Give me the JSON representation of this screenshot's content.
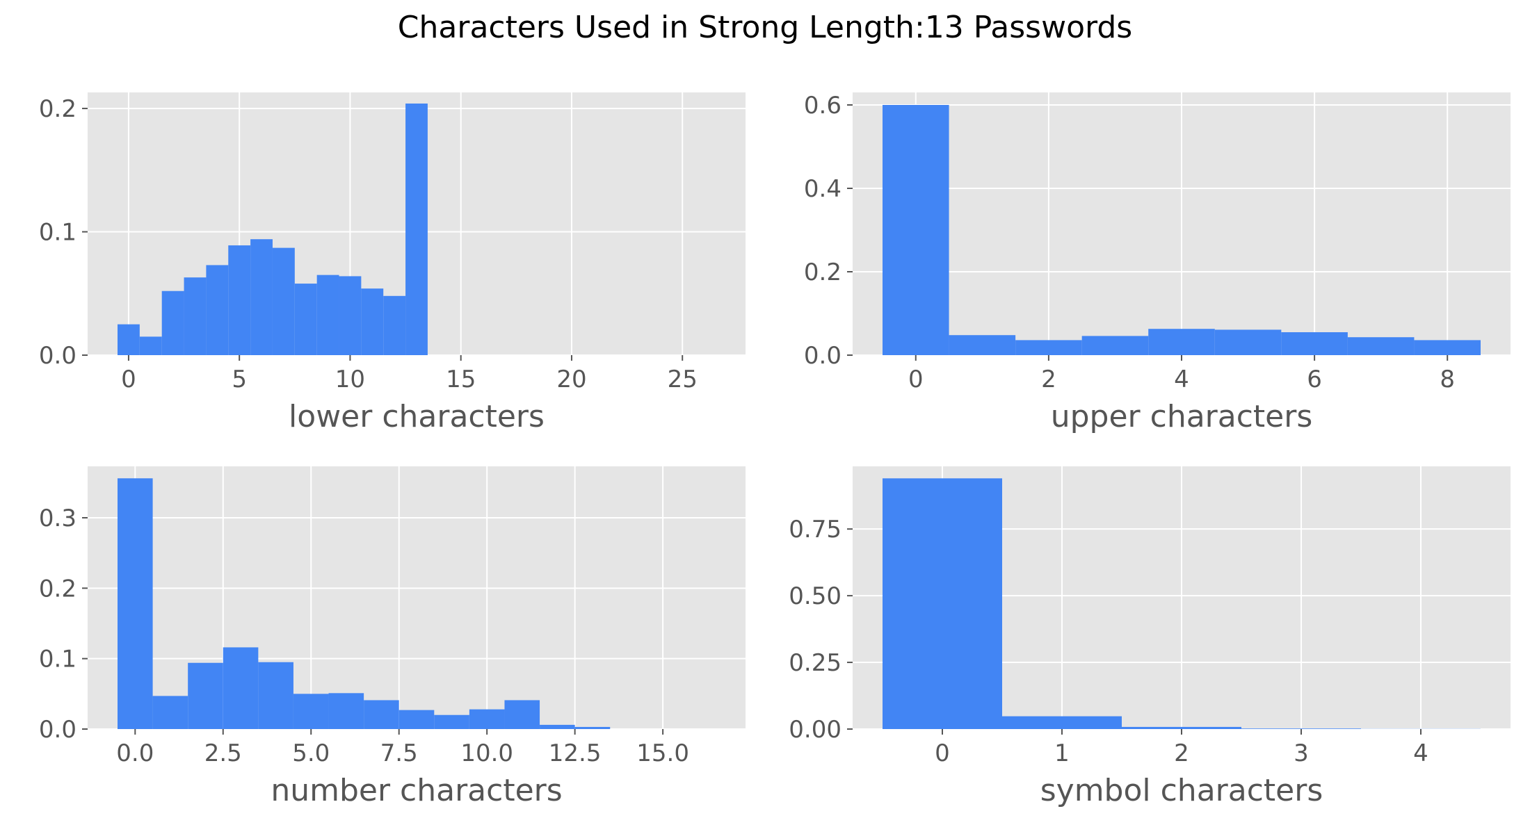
{
  "figure": {
    "title": "Characters Used in Strong Length:13 Passwords",
    "colors": {
      "bar": "#4285F4",
      "panel_bg": "#E5E5E5",
      "grid": "#FFFFFF",
      "tick_text": "#555555"
    }
  },
  "chart_data": [
    {
      "type": "bar",
      "subtype": "histogram",
      "xlabel": "lower characters",
      "ylabel": "",
      "xlim": [
        -1.85,
        27.85
      ],
      "ylim": [
        0,
        0.213
      ],
      "xticks": [
        0,
        5,
        10,
        15,
        20,
        25
      ],
      "xtick_labels": [
        "0",
        "5",
        "10",
        "15",
        "20",
        "25"
      ],
      "yticks": [
        0.0,
        0.1,
        0.2
      ],
      "ytick_labels": [
        "0.0",
        "0.1",
        "0.2"
      ],
      "bin_edges": [
        -0.5,
        0.5,
        1.5,
        2.5,
        3.5,
        4.5,
        5.5,
        6.5,
        7.5,
        8.5,
        9.5,
        10.5,
        11.5,
        12.5,
        13.5
      ],
      "values": [
        0.025,
        0.015,
        0.052,
        0.063,
        0.073,
        0.089,
        0.094,
        0.087,
        0.058,
        0.065,
        0.064,
        0.054,
        0.048,
        0.204
      ],
      "grid": true
    },
    {
      "type": "bar",
      "subtype": "histogram",
      "xlabel": "upper characters",
      "ylabel": "",
      "xlim": [
        -0.95,
        8.95
      ],
      "ylim": [
        0,
        0.63
      ],
      "xticks": [
        0,
        2,
        4,
        6,
        8
      ],
      "xtick_labels": [
        "0",
        "2",
        "4",
        "6",
        "8"
      ],
      "yticks": [
        0.0,
        0.2,
        0.4,
        0.6
      ],
      "ytick_labels": [
        "0.0",
        "0.2",
        "0.4",
        "0.6"
      ],
      "bin_edges": [
        -0.5,
        0.5,
        1.5,
        2.5,
        3.5,
        4.5,
        5.5,
        6.5,
        7.5,
        8.5
      ],
      "values": [
        0.6,
        0.048,
        0.036,
        0.046,
        0.063,
        0.061,
        0.055,
        0.043,
        0.036
      ],
      "grid": true
    },
    {
      "type": "bar",
      "subtype": "histogram",
      "xlabel": "number characters",
      "ylabel": "",
      "xlim": [
        -1.35,
        17.35
      ],
      "ylim": [
        0,
        0.373
      ],
      "xticks": [
        0,
        2.5,
        5,
        7.5,
        10,
        12.5,
        15
      ],
      "xtick_labels": [
        "0.0",
        "2.5",
        "5.0",
        "7.5",
        "10.0",
        "12.5",
        "15.0"
      ],
      "yticks": [
        0.0,
        0.1,
        0.2,
        0.3
      ],
      "ytick_labels": [
        "0.0",
        "0.1",
        "0.2",
        "0.3"
      ],
      "bin_edges": [
        -0.5,
        0.5,
        1.5,
        2.5,
        3.5,
        4.5,
        5.5,
        6.5,
        7.5,
        8.5,
        9.5,
        10.5,
        11.5,
        12.5,
        13.5
      ],
      "values": [
        0.356,
        0.047,
        0.094,
        0.116,
        0.095,
        0.05,
        0.051,
        0.041,
        0.027,
        0.02,
        0.028,
        0.041,
        0.006,
        0.003
      ],
      "grid": true
    },
    {
      "type": "bar",
      "subtype": "histogram",
      "xlabel": "symbol characters",
      "ylabel": "",
      "xlim": [
        -0.75,
        4.75
      ],
      "ylim": [
        0,
        0.985
      ],
      "xticks": [
        0,
        1,
        2,
        3,
        4
      ],
      "xtick_labels": [
        "0",
        "1",
        "2",
        "3",
        "4"
      ],
      "yticks": [
        0.0,
        0.25,
        0.5,
        0.75
      ],
      "ytick_labels": [
        "0.00",
        "0.25",
        "0.50",
        "0.75"
      ],
      "bin_edges": [
        -0.5,
        0.5,
        1.5,
        2.5,
        3.5,
        4.5
      ],
      "values": [
        0.94,
        0.048,
        0.008,
        0.002,
        0.0005
      ],
      "grid": true
    }
  ]
}
